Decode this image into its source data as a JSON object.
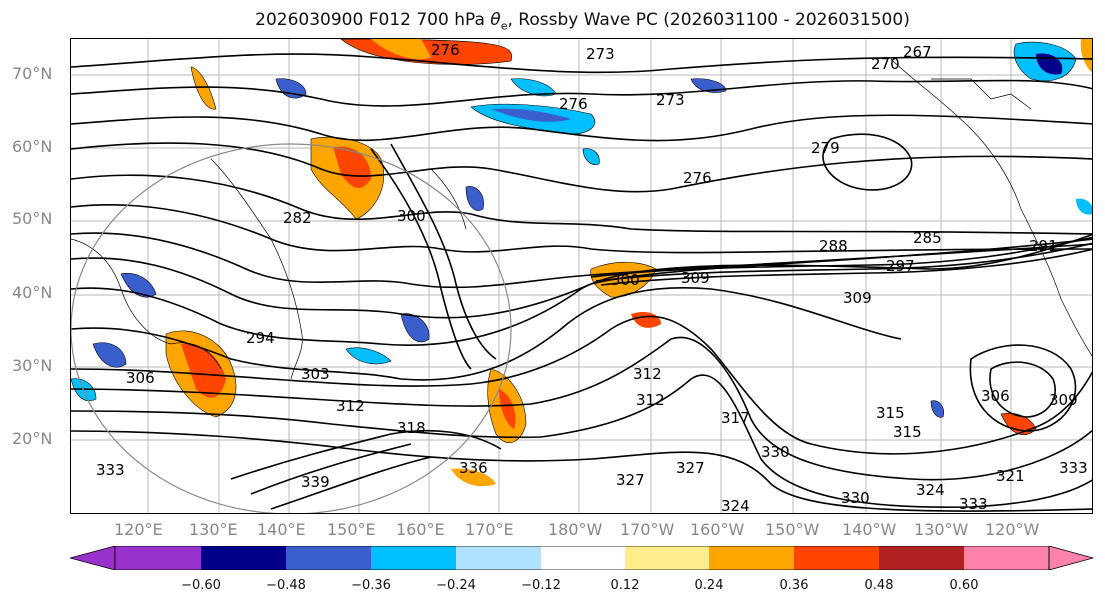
{
  "title_prefix": "2026030900 F012 700 hPa ",
  "title_symbol": "θ",
  "title_subscript": "e",
  "title_suffix": ", Rossby Wave PC (2026031100 - 2026031500)",
  "lat_labels": [
    "70°N",
    "60°N",
    "50°N",
    "40°N",
    "30°N",
    "20°N"
  ],
  "lon_labels": [
    "120°E",
    "130°E",
    "140°E",
    "150°E",
    "160°E",
    "170°E",
    "180°W",
    "170°W",
    "160°W",
    "150°W",
    "140°W",
    "130°W",
    "120°W"
  ],
  "colorbar": {
    "ticks": [
      "−0.60",
      "−0.48",
      "−0.36",
      "−0.24",
      "−0.12",
      "0.12",
      "0.24",
      "0.36",
      "0.48",
      "0.60"
    ],
    "colors": [
      "#9932cc",
      "#00008b",
      "#3a5fcd",
      "#00bfff",
      "#b0e2ff",
      "#ffffff",
      "#ffec8b",
      "#ffa500",
      "#ff4500",
      "#b22222",
      "#ff82ab"
    ]
  },
  "contour_labels": [
    "276",
    "273",
    "270",
    "267",
    "276",
    "273",
    "279",
    "276",
    "282",
    "300",
    "288",
    "285",
    "291",
    "297",
    "294",
    "300",
    "309",
    "309",
    "306",
    "303",
    "312",
    "318",
    "312",
    "317",
    "315",
    "315",
    "306",
    "309",
    "333",
    "339",
    "336",
    "327",
    "324",
    "330",
    "324",
    "333",
    "321",
    "333",
    "330",
    "327",
    "312"
  ],
  "colors": {
    "warm": "#ffa500",
    "hot": "#ff4500",
    "cold": "#00bfff",
    "cool": "#b0e2ff",
    "deep": "#3a5fcd",
    "contour": "#000000",
    "grid": "#aaaaaa"
  }
}
